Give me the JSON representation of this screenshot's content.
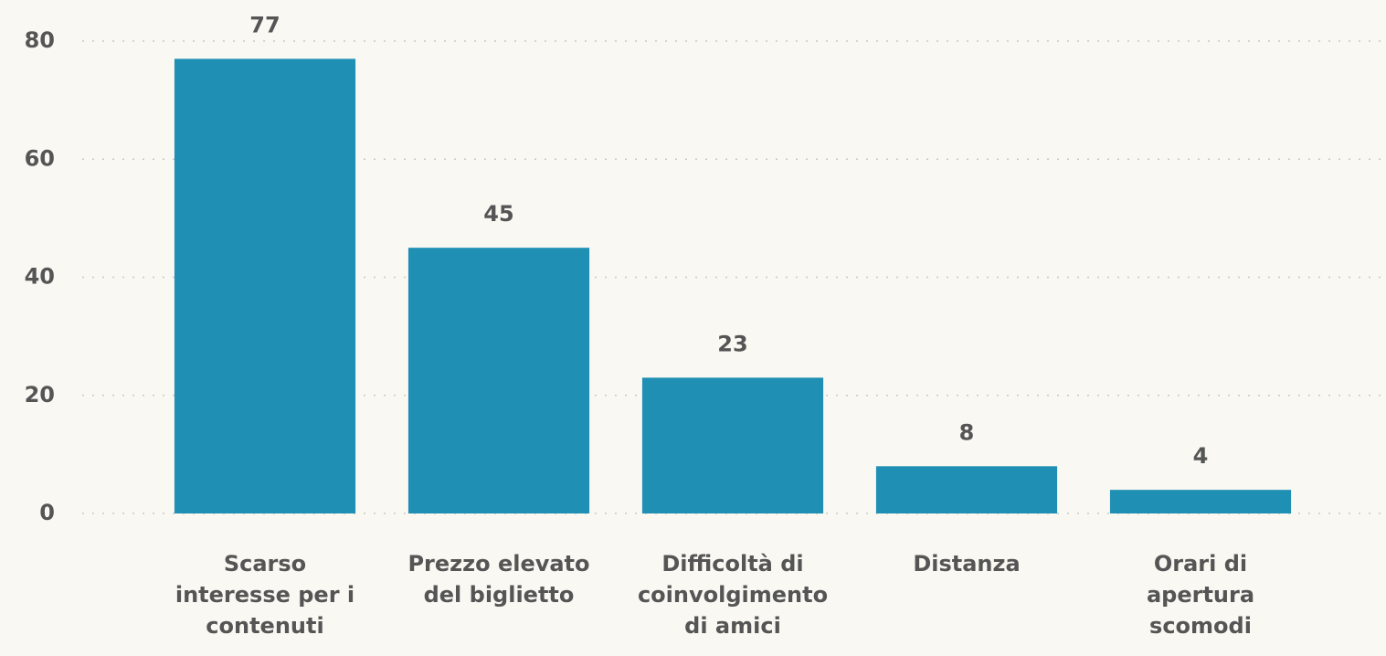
{
  "chart_data": {
    "type": "bar",
    "categories": [
      "Scarso interesse per i contenuti",
      "Prezzo elevato del biglietto",
      "Difficoltà di coinvolgimento di amici",
      "Distanza",
      "Orari di apertura scomodi"
    ],
    "values": [
      77,
      45,
      23,
      8,
      4
    ],
    "color": "#1f8fb4",
    "ylim": [
      0,
      80
    ],
    "yticks": [
      0,
      20,
      40,
      60,
      80
    ],
    "grid": true
  }
}
